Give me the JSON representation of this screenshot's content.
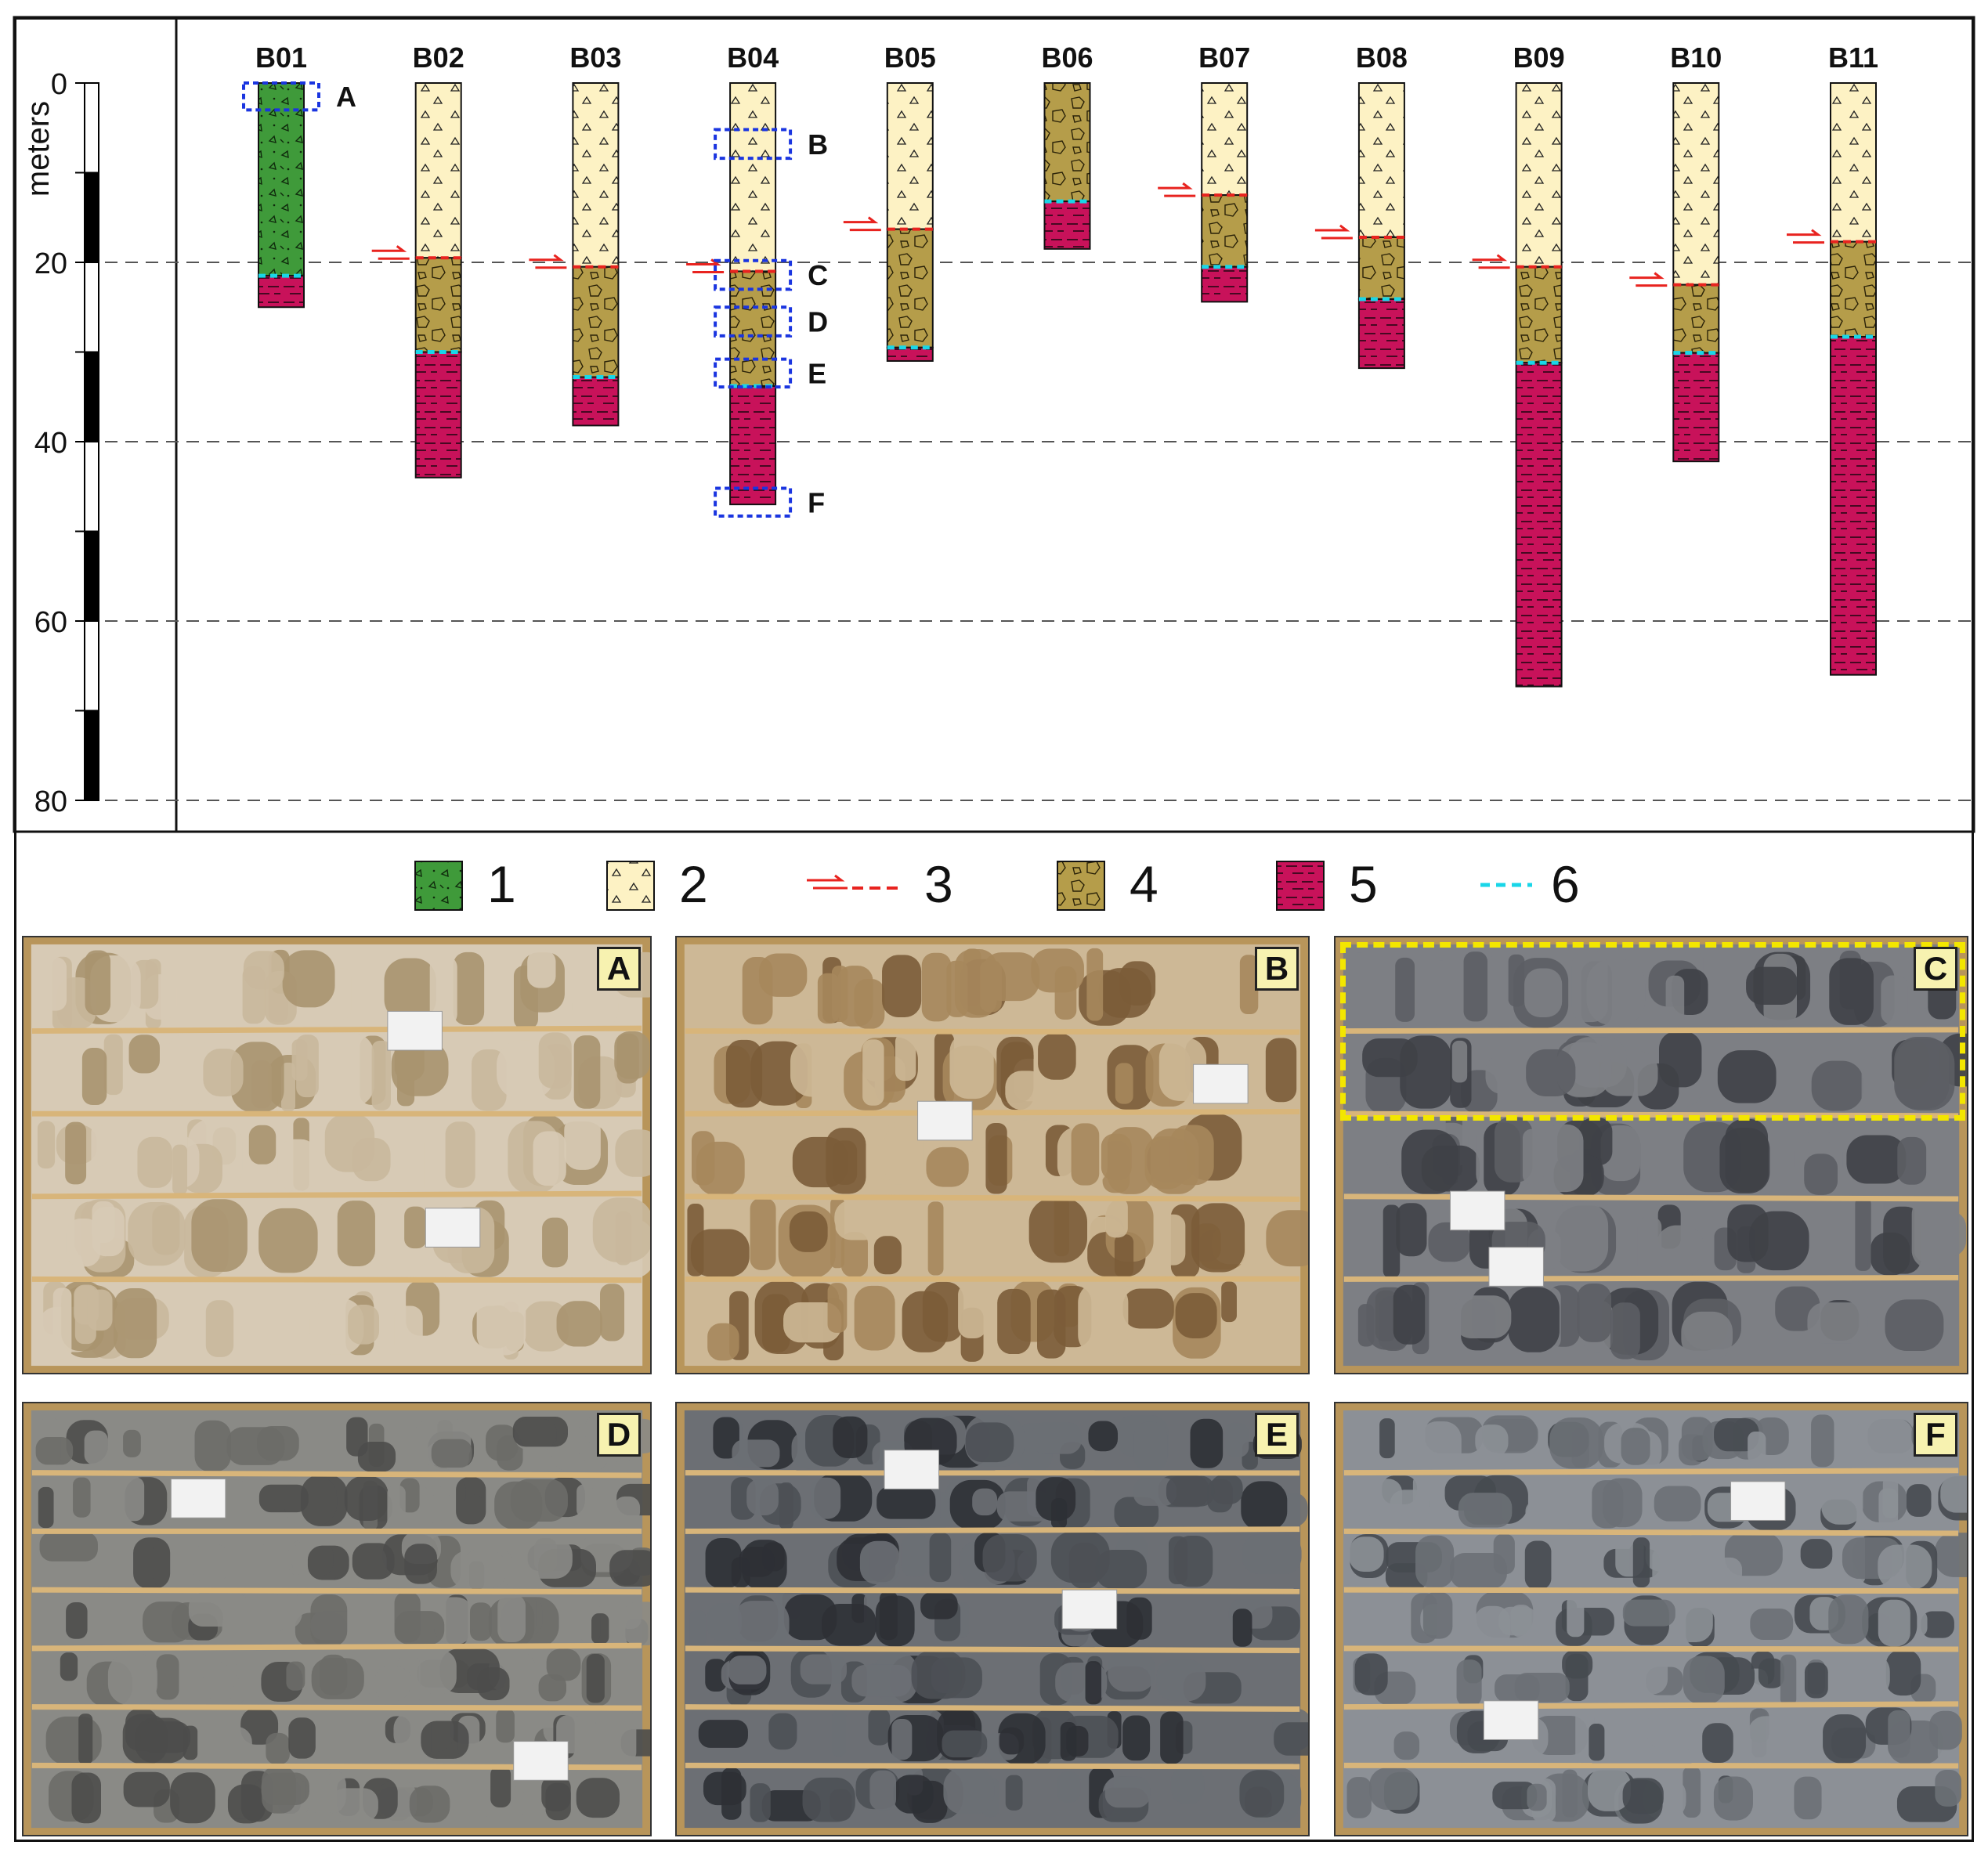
{
  "y_axis": {
    "label": "meters",
    "ticks": [
      "0",
      "20",
      "40",
      "60",
      "80"
    ],
    "min": 0,
    "max": 80
  },
  "legend": [
    {
      "key": "1",
      "pattern": "green-breccia",
      "color": "#3f9a3a"
    },
    {
      "key": "2",
      "pattern": "triangle-fill",
      "color": "#fdf2c4"
    },
    {
      "key": "3",
      "pattern": "fault-line",
      "color": "#e8231f"
    },
    {
      "key": "4",
      "pattern": "block-fill",
      "color": "#b59d4a"
    },
    {
      "key": "5",
      "pattern": "dash-fill",
      "color": "#c8125a"
    },
    {
      "key": "6",
      "pattern": "cyan-dash",
      "color": "#19d6e8"
    }
  ],
  "chart_data": {
    "type": "borehole-log",
    "units": "meters",
    "ylim": [
      0,
      80
    ],
    "gridlines": [
      20,
      40,
      60,
      80
    ],
    "boreholes": [
      {
        "name": "B01",
        "layers": [
          {
            "unit": 1,
            "top": 0,
            "bottom": 21.5
          },
          {
            "unit": 5,
            "top": 21.5,
            "bottom": 25
          }
        ],
        "fault": null,
        "contact": 21.5
      },
      {
        "name": "B02",
        "layers": [
          {
            "unit": 2,
            "top": 0,
            "bottom": 19.5
          },
          {
            "unit": 4,
            "top": 19.5,
            "bottom": 30
          },
          {
            "unit": 5,
            "top": 30,
            "bottom": 44
          }
        ],
        "fault": 19.5,
        "contact": 30
      },
      {
        "name": "B03",
        "layers": [
          {
            "unit": 2,
            "top": 0,
            "bottom": 20.5
          },
          {
            "unit": 4,
            "top": 20.5,
            "bottom": 32.8
          },
          {
            "unit": 5,
            "top": 32.8,
            "bottom": 38.2
          }
        ],
        "fault": 20.5,
        "contact": 32.8
      },
      {
        "name": "B04",
        "layers": [
          {
            "unit": 2,
            "top": 0,
            "bottom": 21
          },
          {
            "unit": 4,
            "top": 21,
            "bottom": 33.8
          },
          {
            "unit": 5,
            "top": 33.8,
            "bottom": 47
          }
        ],
        "fault": 21,
        "contact": 33.8
      },
      {
        "name": "B05",
        "layers": [
          {
            "unit": 2,
            "top": 0,
            "bottom": 16.3
          },
          {
            "unit": 4,
            "top": 16.3,
            "bottom": 29.5
          },
          {
            "unit": 5,
            "top": 29.5,
            "bottom": 31
          }
        ],
        "fault": 16.3,
        "contact": 29.5
      },
      {
        "name": "B06",
        "layers": [
          {
            "unit": 4,
            "top": 0,
            "bottom": 13.2
          },
          {
            "unit": 5,
            "top": 13.2,
            "bottom": 18.5
          }
        ],
        "fault": null,
        "contact": 13.2
      },
      {
        "name": "B07",
        "layers": [
          {
            "unit": 2,
            "top": 0,
            "bottom": 12.5
          },
          {
            "unit": 4,
            "top": 12.5,
            "bottom": 20.5
          },
          {
            "unit": 5,
            "top": 20.5,
            "bottom": 24.4
          }
        ],
        "fault": 12.5,
        "contact": 20.5
      },
      {
        "name": "B08",
        "layers": [
          {
            "unit": 2,
            "top": 0,
            "bottom": 17.2
          },
          {
            "unit": 4,
            "top": 17.2,
            "bottom": 24.1
          },
          {
            "unit": 5,
            "top": 24.1,
            "bottom": 31.8
          }
        ],
        "fault": 17.2,
        "contact": 24.1
      },
      {
        "name": "B09",
        "layers": [
          {
            "unit": 2,
            "top": 0,
            "bottom": 20.5
          },
          {
            "unit": 4,
            "top": 20.5,
            "bottom": 31.2
          },
          {
            "unit": 5,
            "top": 31.2,
            "bottom": 67.3
          }
        ],
        "fault": 20.5,
        "contact": 31.2
      },
      {
        "name": "B10",
        "layers": [
          {
            "unit": 2,
            "top": 0,
            "bottom": 22.5
          },
          {
            "unit": 4,
            "top": 22.5,
            "bottom": 30.1
          },
          {
            "unit": 5,
            "top": 30.1,
            "bottom": 42.2
          }
        ],
        "fault": 22.5,
        "contact": 30.1
      },
      {
        "name": "B11",
        "layers": [
          {
            "unit": 2,
            "top": 0,
            "bottom": 17.7
          },
          {
            "unit": 4,
            "top": 17.7,
            "bottom": 28.3
          },
          {
            "unit": 5,
            "top": 28.3,
            "bottom": 66
          }
        ],
        "fault": 17.7,
        "contact": 28.3
      }
    ],
    "sample_boxes": [
      {
        "label": "A",
        "borehole": "B01",
        "top": 0,
        "bottom": 3
      },
      {
        "label": "B",
        "borehole": "B04",
        "top": 5.2,
        "bottom": 8.4
      },
      {
        "label": "C",
        "borehole": "B04",
        "top": 19.8,
        "bottom": 23.0
      },
      {
        "label": "D",
        "borehole": "B04",
        "top": 25.0,
        "bottom": 28.2
      },
      {
        "label": "E",
        "borehole": "B04",
        "top": 30.8,
        "bottom": 33.9
      },
      {
        "label": "F",
        "borehole": "B04",
        "top": 45.2,
        "bottom": 48.3
      }
    ]
  },
  "photos": [
    {
      "label": "A",
      "tone": "#d7cab5",
      "mid": "#c9b89c",
      "dark": "#a8946f",
      "highlight": false
    },
    {
      "label": "B",
      "tone": "#cdb896",
      "mid": "#a6875c",
      "dark": "#7b5c38",
      "highlight": false
    },
    {
      "label": "C",
      "tone": "#7d7f84",
      "mid": "#5c5e64",
      "dark": "#3f4147",
      "highlight": true
    },
    {
      "label": "D",
      "tone": "#8a8a86",
      "mid": "#6b6b68",
      "dark": "#4d4d4b",
      "highlight": false
    },
    {
      "label": "E",
      "tone": "#6c6f74",
      "mid": "#4d5055",
      "dark": "#2e3035",
      "highlight": false
    },
    {
      "label": "F",
      "tone": "#8c9096",
      "mid": "#6c7076",
      "dark": "#464a50",
      "highlight": false
    }
  ]
}
